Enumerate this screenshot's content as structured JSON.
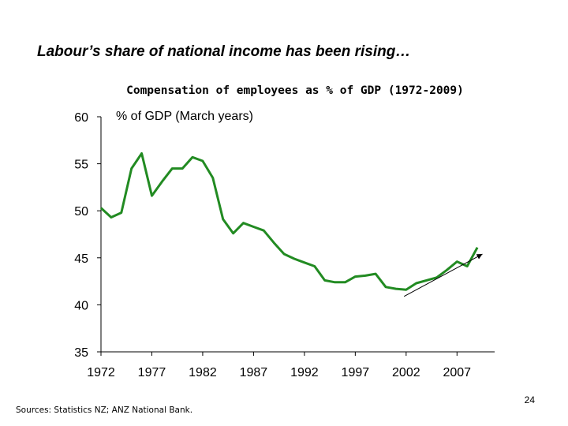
{
  "headline": "Labour’s share of national income has been rising…",
  "sources": "Sources:  Statistics NZ; ANZ National Bank.",
  "page_number": "24",
  "chart_data": {
    "type": "line",
    "title": "Compensation of employees as % of GDP (1972-2009)",
    "unit_label": "% of GDP (March years)",
    "xlabel": "",
    "ylabel": "",
    "xlim": [
      1972,
      2010.7
    ],
    "ylim": [
      35,
      60
    ],
    "x_ticks": [
      1972,
      1977,
      1982,
      1987,
      1992,
      1997,
      2002,
      2007
    ],
    "y_ticks": [
      60,
      55,
      50,
      45,
      40,
      35
    ],
    "grid": false,
    "legend": "none",
    "series": [
      {
        "color": "#228B22",
        "x": [
          1972,
          1973,
          1974,
          1975,
          1976,
          1977,
          1978,
          1979,
          1980,
          1981,
          1982,
          1983,
          1984,
          1985,
          1986,
          1987,
          1988,
          1989,
          1990,
          1991,
          1992,
          1993,
          1994,
          1995,
          1996,
          1997,
          1998,
          1999,
          2000,
          2001,
          2002,
          2003,
          2004,
          2005,
          2006,
          2007,
          2008,
          2009
        ],
        "y": [
          50.3,
          49.3,
          49.8,
          54.5,
          56.1,
          51.6,
          53.1,
          54.5,
          54.5,
          55.7,
          55.3,
          53.5,
          49.1,
          47.6,
          48.7,
          48.3,
          47.9,
          46.6,
          45.4,
          44.9,
          44.5,
          44.1,
          42.6,
          42.4,
          42.4,
          43.0,
          43.1,
          43.3,
          41.9,
          41.7,
          41.6,
          42.3,
          42.6,
          42.9,
          43.7,
          44.6,
          44.1,
          46.1
        ]
      }
    ],
    "annotations": [
      {
        "type": "trend-arrow",
        "color": "#000000",
        "from": [
          2001.8,
          40.9
        ],
        "to": [
          2009.5,
          45.4
        ]
      }
    ]
  }
}
